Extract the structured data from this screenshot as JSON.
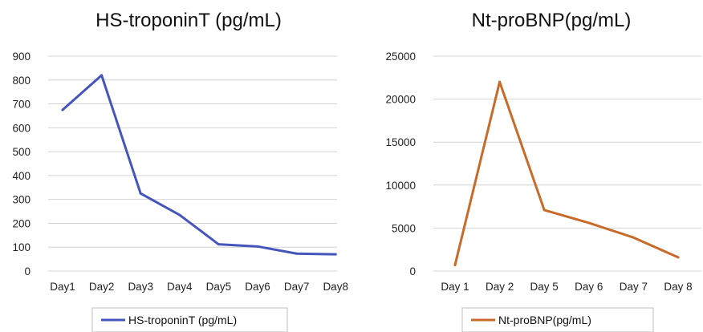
{
  "chart_data": [
    {
      "type": "line",
      "title": "HS-troponinT (pg/mL)",
      "categories": [
        "Day1",
        "Day2",
        "Day3",
        "Day4",
        "Day5",
        "Day6",
        "Day7",
        "Day8"
      ],
      "series": [
        {
          "name": "HS-troponinT (pg/mL)",
          "values": [
            675,
            820,
            325,
            235,
            112,
            103,
            73,
            70
          ]
        }
      ],
      "ylim": [
        0,
        900
      ],
      "yticks": [
        0,
        100,
        200,
        300,
        400,
        500,
        600,
        700,
        800,
        900
      ],
      "grid": true,
      "legend": "bottom",
      "color": "#4455bb"
    },
    {
      "type": "line",
      "title": "Nt-proBNP(pg/mL)",
      "categories": [
        "Day 1",
        "Day 2",
        "Day 5",
        "Day 6",
        "Day 7",
        "Day 8"
      ],
      "series": [
        {
          "name": "Nt-proBNP(pg/mL)",
          "values": [
            700,
            22000,
            7100,
            5600,
            3900,
            1600
          ]
        }
      ],
      "ylim": [
        0,
        25000
      ],
      "yticks": [
        0,
        5000,
        10000,
        15000,
        20000,
        25000
      ],
      "grid": true,
      "legend": "bottom",
      "color": "#c86a2a"
    }
  ]
}
